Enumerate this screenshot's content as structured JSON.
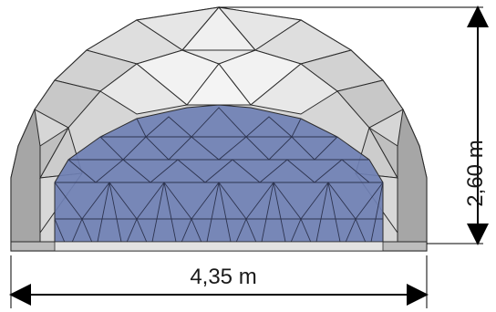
{
  "dimensions": {
    "width_label": "4,35 m",
    "height_label": "2,60 m"
  },
  "colors": {
    "shell_light": "#e4e4e4",
    "shell_mid": "#cfcfcf",
    "shell_dark": "#9c9c9c",
    "interior_blue": "#6f80b4",
    "edge": "#2b2b2b",
    "dimension_line": "#000000"
  }
}
